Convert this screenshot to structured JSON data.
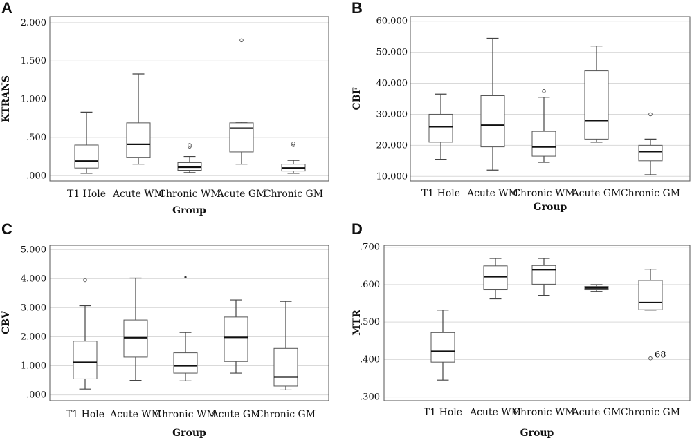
{
  "chart_data": [
    {
      "id": "A",
      "panel_label": "A",
      "type": "boxplot",
      "ylabel": "KTRANS",
      "xlabel": "Group",
      "ylim": [
        -0.07,
        2.08
      ],
      "yticks": [
        0.0,
        0.5,
        1.0,
        1.5,
        2.0
      ],
      "ytick_labels": [
        ".000",
        ".500",
        "1.000",
        "1.500",
        "2.000"
      ],
      "grid": true,
      "categories": [
        "T1 Hole",
        "Acute WM",
        "Chronic WM",
        "Acute GM",
        "Chronic GM"
      ],
      "boxes": [
        {
          "min": 0.03,
          "q1": 0.1,
          "median": 0.19,
          "q3": 0.4,
          "max": 0.83,
          "outliers": []
        },
        {
          "min": 0.15,
          "q1": 0.24,
          "median": 0.41,
          "q3": 0.69,
          "max": 1.33,
          "outliers": []
        },
        {
          "min": 0.04,
          "q1": 0.07,
          "median": 0.11,
          "q3": 0.17,
          "max": 0.25,
          "outliers": [
            0.38,
            0.4
          ]
        },
        {
          "min": 0.15,
          "q1": 0.31,
          "median": 0.62,
          "q3": 0.69,
          "max": 0.7,
          "outliers": [
            1.77
          ]
        },
        {
          "min": 0.03,
          "q1": 0.06,
          "median": 0.1,
          "q3": 0.15,
          "max": 0.2,
          "outliers": [
            0.4,
            0.42
          ]
        }
      ]
    },
    {
      "id": "B",
      "panel_label": "B",
      "type": "boxplot",
      "ylabel": "CBF",
      "xlabel": "Group",
      "ylim": [
        8.5,
        61.5
      ],
      "yticks": [
        10,
        20,
        30,
        40,
        50,
        60
      ],
      "ytick_labels": [
        "10.000",
        "20.000",
        "30.000",
        "40.000",
        "50.000",
        "60.000"
      ],
      "grid": true,
      "categories": [
        "T1 Hole",
        "Acute WM",
        "Chronic WM",
        "Acute GM",
        "Chronic GM"
      ],
      "boxes": [
        {
          "min": 15.5,
          "q1": 21.0,
          "median": 26.0,
          "q3": 30.0,
          "max": 36.5,
          "outliers": []
        },
        {
          "min": 12.0,
          "q1": 19.5,
          "median": 26.5,
          "q3": 36.0,
          "max": 54.5,
          "outliers": []
        },
        {
          "min": 14.5,
          "q1": 16.5,
          "median": 19.5,
          "q3": 24.5,
          "max": 35.5,
          "outliers": [
            37.5
          ]
        },
        {
          "min": 21.0,
          "q1": 22.0,
          "median": 28.0,
          "q3": 44.0,
          "max": 52.0,
          "outliers": []
        },
        {
          "min": 10.5,
          "q1": 15.0,
          "median": 18.0,
          "q3": 20.0,
          "max": 22.0,
          "outliers": [
            30.0
          ]
        }
      ]
    },
    {
      "id": "C",
      "panel_label": "C",
      "type": "boxplot",
      "ylabel": "CBV",
      "xlabel": "Group",
      "ylim": [
        -0.2,
        5.15
      ],
      "yticks": [
        0,
        1,
        2,
        3,
        4,
        5
      ],
      "ytick_labels": [
        ".000",
        "1.000",
        "2.000",
        "3.000",
        "4.000",
        "5.000"
      ],
      "grid": true,
      "categories": [
        "T1 Hole",
        "Acute WM",
        "Chronic WM",
        "Acute GM",
        "Chronic GM"
      ],
      "boxes": [
        {
          "min": 0.2,
          "q1": 0.55,
          "median": 1.12,
          "q3": 1.85,
          "max": 3.07,
          "outliers": [
            3.95
          ]
        },
        {
          "min": 0.5,
          "q1": 1.3,
          "median": 1.97,
          "q3": 2.58,
          "max": 4.02,
          "outliers": []
        },
        {
          "min": 0.48,
          "q1": 0.75,
          "median": 1.0,
          "q3": 1.45,
          "max": 2.15,
          "outliers": [],
          "extremes": [
            4.05
          ]
        },
        {
          "min": 0.75,
          "q1": 1.15,
          "median": 1.98,
          "q3": 2.68,
          "max": 3.27,
          "outliers": []
        },
        {
          "min": 0.17,
          "q1": 0.3,
          "median": 0.62,
          "q3": 1.6,
          "max": 3.22,
          "outliers": []
        }
      ]
    },
    {
      "id": "D",
      "panel_label": "D",
      "type": "boxplot",
      "ylabel": "MTR",
      "xlabel": "Group",
      "ylim": [
        0.29,
        0.705
      ],
      "yticks": [
        0.3,
        0.4,
        0.5,
        0.6,
        0.7
      ],
      "ytick_labels": [
        ".300",
        ".400",
        ".500",
        ".600",
        ".700"
      ],
      "grid": true,
      "categories": [
        "T1 Hole",
        "Acute WM",
        "Chronic WM",
        "Acute GM",
        "Chronic GM"
      ],
      "boxes": [
        {
          "min": 0.345,
          "q1": 0.393,
          "median": 0.422,
          "q3": 0.472,
          "max": 0.532,
          "outliers": []
        },
        {
          "min": 0.562,
          "q1": 0.586,
          "median": 0.621,
          "q3": 0.65,
          "max": 0.67,
          "outliers": []
        },
        {
          "min": 0.571,
          "q1": 0.601,
          "median": 0.64,
          "q3": 0.651,
          "max": 0.67,
          "outliers": []
        },
        {
          "min": 0.582,
          "q1": 0.586,
          "median": 0.591,
          "q3": 0.595,
          "max": 0.6,
          "outliers": []
        },
        {
          "min": 0.532,
          "q1": 0.533,
          "median": 0.552,
          "q3": 0.611,
          "max": 0.641,
          "outliers": [
            0.403
          ],
          "outlier_labels": [
            "68"
          ]
        }
      ]
    }
  ]
}
